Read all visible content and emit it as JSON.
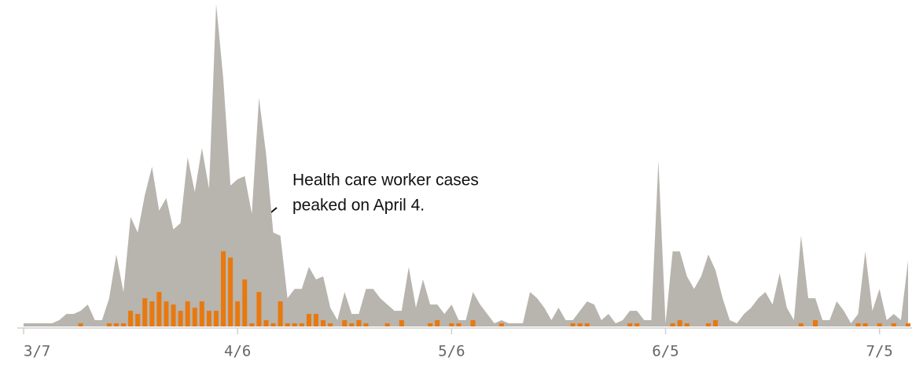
{
  "chart_data": {
    "type": "area",
    "x": [
      0,
      1,
      2,
      3,
      4,
      5,
      6,
      7,
      8,
      9,
      10,
      11,
      12,
      13,
      14,
      15,
      16,
      17,
      18,
      19,
      20,
      21,
      22,
      23,
      24,
      25,
      26,
      27,
      28,
      29,
      30,
      31,
      32,
      33,
      34,
      35,
      36,
      37,
      38,
      39,
      40,
      41,
      42,
      43,
      44,
      45,
      46,
      47,
      48,
      49,
      50,
      51,
      52,
      53,
      54,
      55,
      56,
      57,
      58,
      59,
      60,
      61,
      62,
      63,
      64,
      65,
      66,
      67,
      68,
      69,
      70,
      71,
      72,
      73,
      74,
      75,
      76,
      77,
      78,
      79,
      80,
      81,
      82,
      83,
      84,
      85,
      86,
      87,
      88,
      89,
      90,
      91,
      92,
      93,
      94,
      95,
      96,
      97,
      98,
      99,
      100,
      101,
      102,
      103,
      104,
      105,
      106,
      107,
      108,
      109,
      110,
      111,
      112,
      113,
      114,
      115,
      116,
      117,
      118,
      119,
      120,
      121,
      122,
      123,
      124
    ],
    "series": [
      {
        "type": "area",
        "color": "#b8b4ae",
        "values": [
          1,
          1,
          1,
          1,
          1,
          2,
          4,
          4,
          5,
          7,
          2,
          2,
          9,
          23,
          11,
          35,
          30,
          42,
          51,
          37,
          41,
          31,
          33,
          54,
          43,
          57,
          44,
          103,
          79,
          45,
          47,
          48,
          36,
          73,
          55,
          30,
          29,
          9,
          12,
          12,
          19,
          15,
          16,
          6,
          2,
          11,
          4,
          4,
          12,
          12,
          9,
          7,
          5,
          5,
          19,
          6,
          15,
          7,
          7,
          4,
          7,
          2,
          2,
          11,
          7,
          4,
          1,
          2,
          1,
          1,
          1,
          11,
          9,
          6,
          2,
          6,
          2,
          2,
          5,
          8,
          7,
          2,
          4,
          1,
          2,
          5,
          5,
          2,
          2,
          53,
          1,
          24,
          24,
          16,
          12,
          16,
          23,
          18,
          9,
          2,
          1,
          4,
          6,
          9,
          11,
          7,
          17,
          6,
          2,
          29,
          9,
          9,
          2,
          2,
          8,
          5,
          1,
          4,
          24,
          5,
          12,
          2,
          4,
          2,
          21
        ]
      },
      {
        "type": "bar",
        "color": "#e8790e",
        "values": [
          0,
          0,
          0,
          0,
          0,
          0,
          0,
          0,
          1,
          0,
          0,
          0,
          1,
          1,
          1,
          5,
          4,
          9,
          8,
          11,
          8,
          7,
          5,
          8,
          6,
          8,
          5,
          5,
          24,
          22,
          8,
          15,
          1,
          11,
          2,
          1,
          8,
          1,
          1,
          1,
          4,
          4,
          2,
          1,
          0,
          2,
          1,
          2,
          1,
          0,
          0,
          1,
          0,
          2,
          0,
          0,
          0,
          1,
          2,
          0,
          1,
          1,
          0,
          2,
          0,
          0,
          0,
          1,
          0,
          0,
          0,
          0,
          0,
          0,
          0,
          0,
          0,
          1,
          1,
          1,
          0,
          0,
          0,
          0,
          0,
          1,
          1,
          0,
          0,
          0,
          0,
          1,
          2,
          1,
          0,
          0,
          1,
          2,
          0,
          0,
          0,
          0,
          0,
          0,
          0,
          0,
          0,
          0,
          0,
          1,
          0,
          2,
          0,
          0,
          0,
          0,
          0,
          1,
          1,
          0,
          1,
          0,
          1,
          0,
          1
        ]
      }
    ],
    "xlim": [
      0,
      124
    ],
    "xticks": [
      {
        "value": 0,
        "label": "3/7"
      },
      {
        "value": 30,
        "label": "4/6"
      },
      {
        "value": 60,
        "label": "5/6"
      },
      {
        "value": 90,
        "label": "6/5"
      },
      {
        "value": 120,
        "label": "7/5"
      }
    ],
    "ylim": [
      0,
      103
    ],
    "annotation": [
      "Health care worker cases",
      "peaked on April 4."
    ]
  }
}
